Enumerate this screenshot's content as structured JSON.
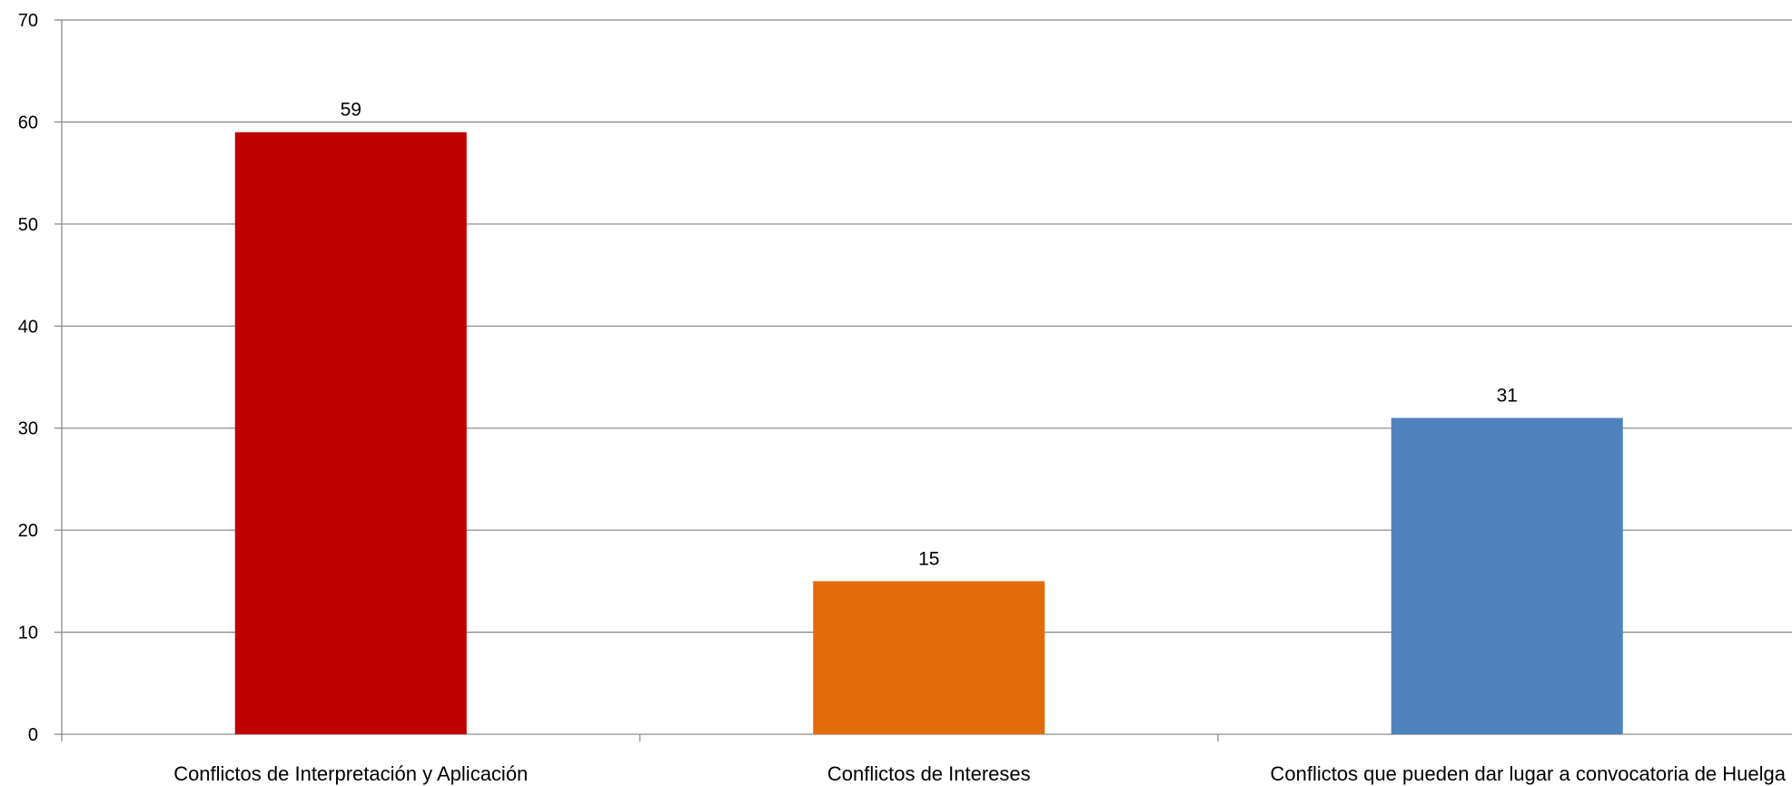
{
  "chart_data": {
    "type": "bar",
    "categories": [
      "Conflictos de Interpretación y Aplicación",
      "Conflictos de Intereses",
      "Conflictos que pueden dar lugar a convocatoria de Huelga"
    ],
    "values": [
      59,
      15,
      31
    ],
    "bar_colors": [
      "#C00000",
      "#E36C0A",
      "#4F81BD"
    ],
    "ylim": [
      0,
      70
    ],
    "yticks": [
      0,
      10,
      20,
      30,
      40,
      50,
      60,
      70
    ],
    "grid": true,
    "data_labels": [
      "59",
      "15",
      "31"
    ]
  }
}
